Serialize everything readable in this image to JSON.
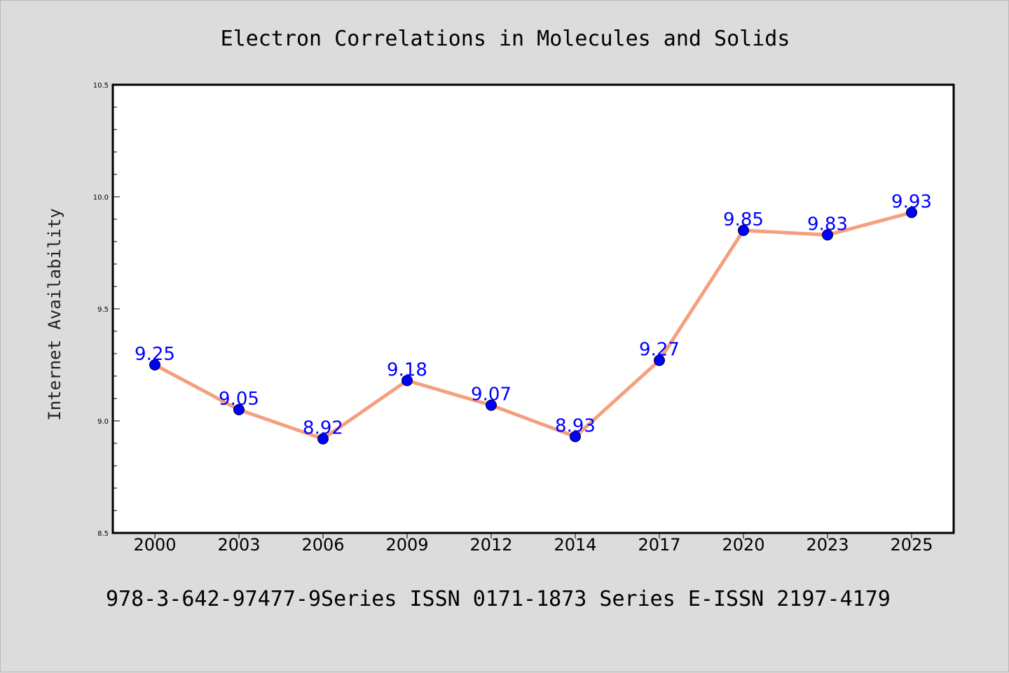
{
  "colors": {
    "background": "#dcdcdc",
    "plot_background": "#ffffff",
    "line": "#f4a07f",
    "marker": "#0000ff",
    "data_label": "#0000ff"
  },
  "footer_text": "978-3-642-97477-9Series ISSN 0171-1873 Series E-ISSN 2197-4179",
  "chart_data": {
    "type": "line",
    "title": "Electron Correlations in Molecules and Solids",
    "xlabel": "",
    "ylabel": "Internet Availability",
    "categories": [
      "2000",
      "2003",
      "2006",
      "2009",
      "2012",
      "2014",
      "2017",
      "2020",
      "2023",
      "2025"
    ],
    "series": [
      {
        "values": [
          9.25,
          9.05,
          8.92,
          9.18,
          9.07,
          8.93,
          9.27,
          9.85,
          9.83,
          9.93
        ]
      }
    ],
    "data_labels": [
      "9.25",
      "9.05",
      "8.92",
      "9.18",
      "9.07",
      "8.93",
      "9.27",
      "9.85",
      "9.83",
      "9.93"
    ],
    "ylim": [
      8.5,
      10.5
    ],
    "yticks": [
      "8.5",
      "9.0",
      "9.5",
      "10.0",
      "10.5"
    ],
    "grid": false,
    "legend": "none"
  }
}
